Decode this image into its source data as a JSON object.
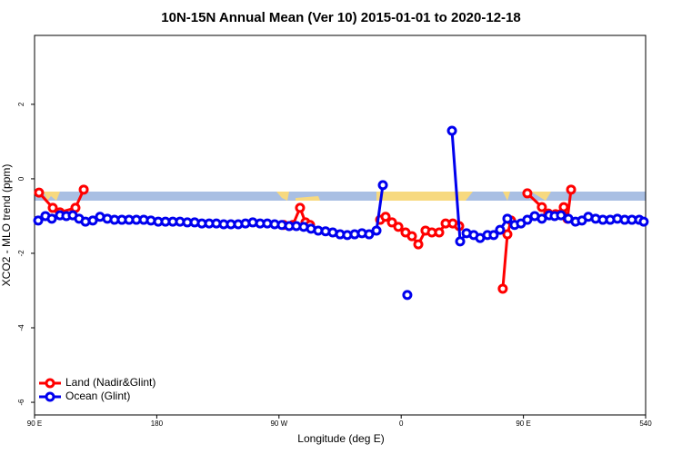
{
  "chart_data": {
    "type": "line",
    "title": "10N-15N Annual Mean (Ver 10)   2015-01-01 to 2020-12-18",
    "x_label": "Longitude (deg E)",
    "y_label": "XCO2 - MLO trend (ppm)",
    "xlim": [
      90,
      540
    ],
    "ylim": [
      -6.34,
      3.85
    ],
    "xticks": [
      {
        "value": 90,
        "label": "90 E"
      },
      180,
      {
        "value": 270,
        "label": "90 W"
      },
      {
        "value": 360,
        "label": "0"
      },
      {
        "value": 450,
        "label": "90 E"
      },
      540
    ],
    "yticks": [
      -6,
      -4,
      -2,
      0,
      2
    ],
    "legend": "bottom-left",
    "series": [
      {
        "name": "Land (Nadir&Glint)",
        "color": "#ff0000",
        "x": [
          93.3,
          103.4,
          108.7,
          120.1,
          126.2,
          200,
          273.5,
          280.2,
          285.5,
          289.5,
          292.9,
          320,
          344.5,
          348.5,
          353.2,
          357.9,
          363.2,
          367.9,
          372.6,
          377.9,
          382.6,
          388.0,
          392.7,
          398.0,
          402.7,
          420,
          434.8,
          438.2,
          440.9,
          446,
          452.9,
          463.6,
          468.3,
          473.7,
          479.7,
          482.4,
          485.1
        ],
        "values": [
          -0.37,
          -0.78,
          -0.9,
          -0.78,
          -0.29,
          null,
          -1.24,
          -1.24,
          -0.78,
          -1.17,
          -1.24,
          null,
          -1.1,
          -1.02,
          -1.17,
          -1.29,
          -1.44,
          -1.54,
          -1.76,
          -1.39,
          -1.44,
          -1.44,
          -1.2,
          -1.2,
          -1.27,
          null,
          -2.95,
          -1.49,
          -1.12,
          null,
          -0.39,
          -0.76,
          -0.93,
          -0.95,
          -0.76,
          -1.07,
          -0.29
        ]
      },
      {
        "name": "Ocean (Glint)",
        "color": "#0000ee",
        "x": [
          92.7,
          98.0,
          102.7,
          108.7,
          113.4,
          118.1,
          122.8,
          127.5,
          132.9,
          138.2,
          143.6,
          148.9,
          154.3,
          159.6,
          165.0,
          170.4,
          175.7,
          181.1,
          186.4,
          191.8,
          197.1,
          202.5,
          207.9,
          213.2,
          218.6,
          223.9,
          229.3,
          234.6,
          240.0,
          245.3,
          250.7,
          256.1,
          261.4,
          266.8,
          272.1,
          277.5,
          282.8,
          288.2,
          293.6,
          298.9,
          304.3,
          309.6,
          315.0,
          320.3,
          325.7,
          331.1,
          336.4,
          341.8,
          346.5,
          355,
          364.5,
          381,
          397.4,
          403.4,
          408.1,
          413.4,
          418.1,
          423.5,
          428.1,
          432.8,
          438.2,
          443.5,
          448.2,
          452.9,
          458.3,
          463.6,
          469.0,
          473.0,
          477.7,
          483.1,
          488.4,
          493.1,
          497.8,
          503.2,
          508.5,
          513.9,
          519.2,
          524.6,
          529.9,
          535.3,
          538.6
        ],
        "values": [
          -1.12,
          -1.0,
          -1.07,
          -0.98,
          -1.0,
          -0.98,
          -1.07,
          -1.15,
          -1.12,
          -1.02,
          -1.07,
          -1.1,
          -1.1,
          -1.1,
          -1.1,
          -1.1,
          -1.12,
          -1.15,
          -1.15,
          -1.15,
          -1.15,
          -1.17,
          -1.17,
          -1.2,
          -1.2,
          -1.2,
          -1.22,
          -1.22,
          -1.22,
          -1.2,
          -1.17,
          -1.2,
          -1.2,
          -1.22,
          -1.24,
          -1.27,
          -1.27,
          -1.29,
          -1.34,
          -1.39,
          -1.41,
          -1.44,
          -1.49,
          -1.51,
          -1.49,
          -1.46,
          -1.49,
          -1.39,
          -0.17,
          null,
          -3.12,
          null,
          1.29,
          -1.68,
          -1.46,
          -1.51,
          -1.59,
          -1.51,
          -1.51,
          -1.37,
          -1.07,
          -1.24,
          -1.2,
          -1.1,
          -1.0,
          -1.07,
          -0.98,
          -1.0,
          -0.98,
          -1.07,
          -1.15,
          -1.12,
          -1.02,
          -1.07,
          -1.1,
          -1.1,
          -1.07,
          -1.1,
          -1.1,
          -1.1,
          -1.15
        ]
      }
    ]
  }
}
